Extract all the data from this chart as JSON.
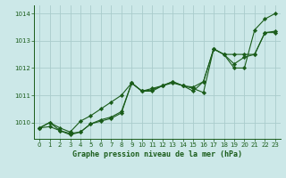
{
  "title": "Graphe pression niveau de la mer (hPa)",
  "bg_color": "#cce8e8",
  "grid_color": "#aacccc",
  "line_color": "#1a5c1a",
  "marker_color": "#1a5c1a",
  "xlim": [
    -0.5,
    23.5
  ],
  "ylim": [
    1009.4,
    1014.3
  ],
  "yticks": [
    1010,
    1011,
    1012,
    1013,
    1014
  ],
  "xticks": [
    0,
    1,
    2,
    3,
    4,
    5,
    6,
    7,
    8,
    9,
    10,
    11,
    12,
    13,
    14,
    15,
    16,
    17,
    18,
    19,
    20,
    21,
    22,
    23
  ],
  "series": [
    [
      1009.8,
      1010.0,
      1009.8,
      1009.65,
      1010.05,
      1010.25,
      1010.5,
      1010.75,
      1011.0,
      1011.45,
      1011.15,
      1011.25,
      1011.35,
      1011.45,
      1011.35,
      1011.3,
      1011.5,
      1012.7,
      1012.5,
      1012.0,
      1012.0,
      1013.4,
      1013.8,
      1014.0
    ],
    [
      1009.8,
      1009.85,
      1009.7,
      1009.6,
      1009.65,
      1009.95,
      1010.1,
      1010.2,
      1010.4,
      1011.45,
      1011.15,
      1011.2,
      1011.35,
      1011.5,
      1011.35,
      1011.25,
      1011.1,
      1012.7,
      1012.5,
      1012.5,
      1012.5,
      1012.5,
      1013.3,
      1013.35
    ],
    [
      1009.8,
      1010.0,
      1009.7,
      1009.55,
      1009.65,
      1009.95,
      1010.05,
      1010.15,
      1010.35,
      1011.45,
      1011.15,
      1011.15,
      1011.35,
      1011.5,
      1011.35,
      1011.15,
      1011.5,
      1012.7,
      1012.5,
      1012.15,
      1012.4,
      1012.5,
      1013.3,
      1013.3
    ]
  ]
}
